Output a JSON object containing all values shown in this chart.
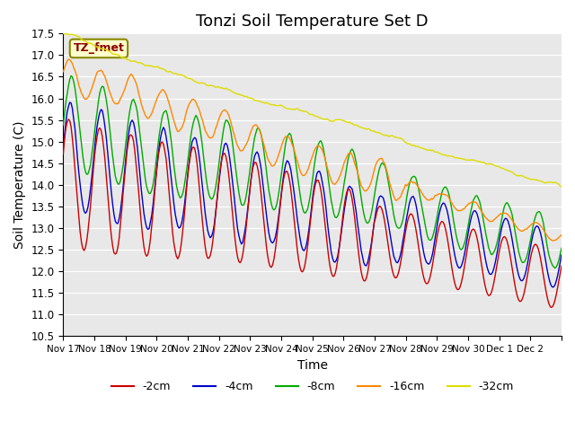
{
  "title": "Tonzi Soil Temperature Set D",
  "xlabel": "Time",
  "ylabel": "Soil Temperature (C)",
  "ylim": [
    10.5,
    17.5
  ],
  "yticks": [
    10.5,
    11.0,
    11.5,
    12.0,
    12.5,
    13.0,
    13.5,
    14.0,
    14.5,
    15.0,
    15.5,
    16.0,
    16.5,
    17.0,
    17.5
  ],
  "colors": {
    "-2cm": "#cc0000",
    "-4cm": "#0000cc",
    "-8cm": "#00aa00",
    "-16cm": "#ff8800",
    "-32cm": "#dddd00"
  },
  "legend_labels": [
    "-2cm",
    "-4cm",
    "-8cm",
    "-16cm",
    "-32cm"
  ],
  "annotation": "TZ_fmet",
  "annotation_color": "#8B0000",
  "annotation_bg": "#ffffcc",
  "plot_bg": "#e8e8e8",
  "n_points": 384,
  "grid_color": "#ffffff",
  "title_fontsize": 13,
  "axis_fontsize": 10,
  "xtick_positions": [
    0,
    1,
    2,
    3,
    4,
    5,
    6,
    7,
    8,
    9,
    10,
    11,
    12,
    13,
    14,
    15,
    16
  ],
  "xtick_labels": [
    "Nov 17",
    "Nov 18",
    "Nov 19",
    "Nov 20",
    "Nov 21",
    "Nov 22",
    "Nov 23",
    "Nov 24",
    "Nov 25",
    "Nov 26",
    "Nov 27",
    "Nov 28",
    "Nov 29",
    "Nov 30",
    "Dec 1",
    "Dec 2",
    ""
  ]
}
